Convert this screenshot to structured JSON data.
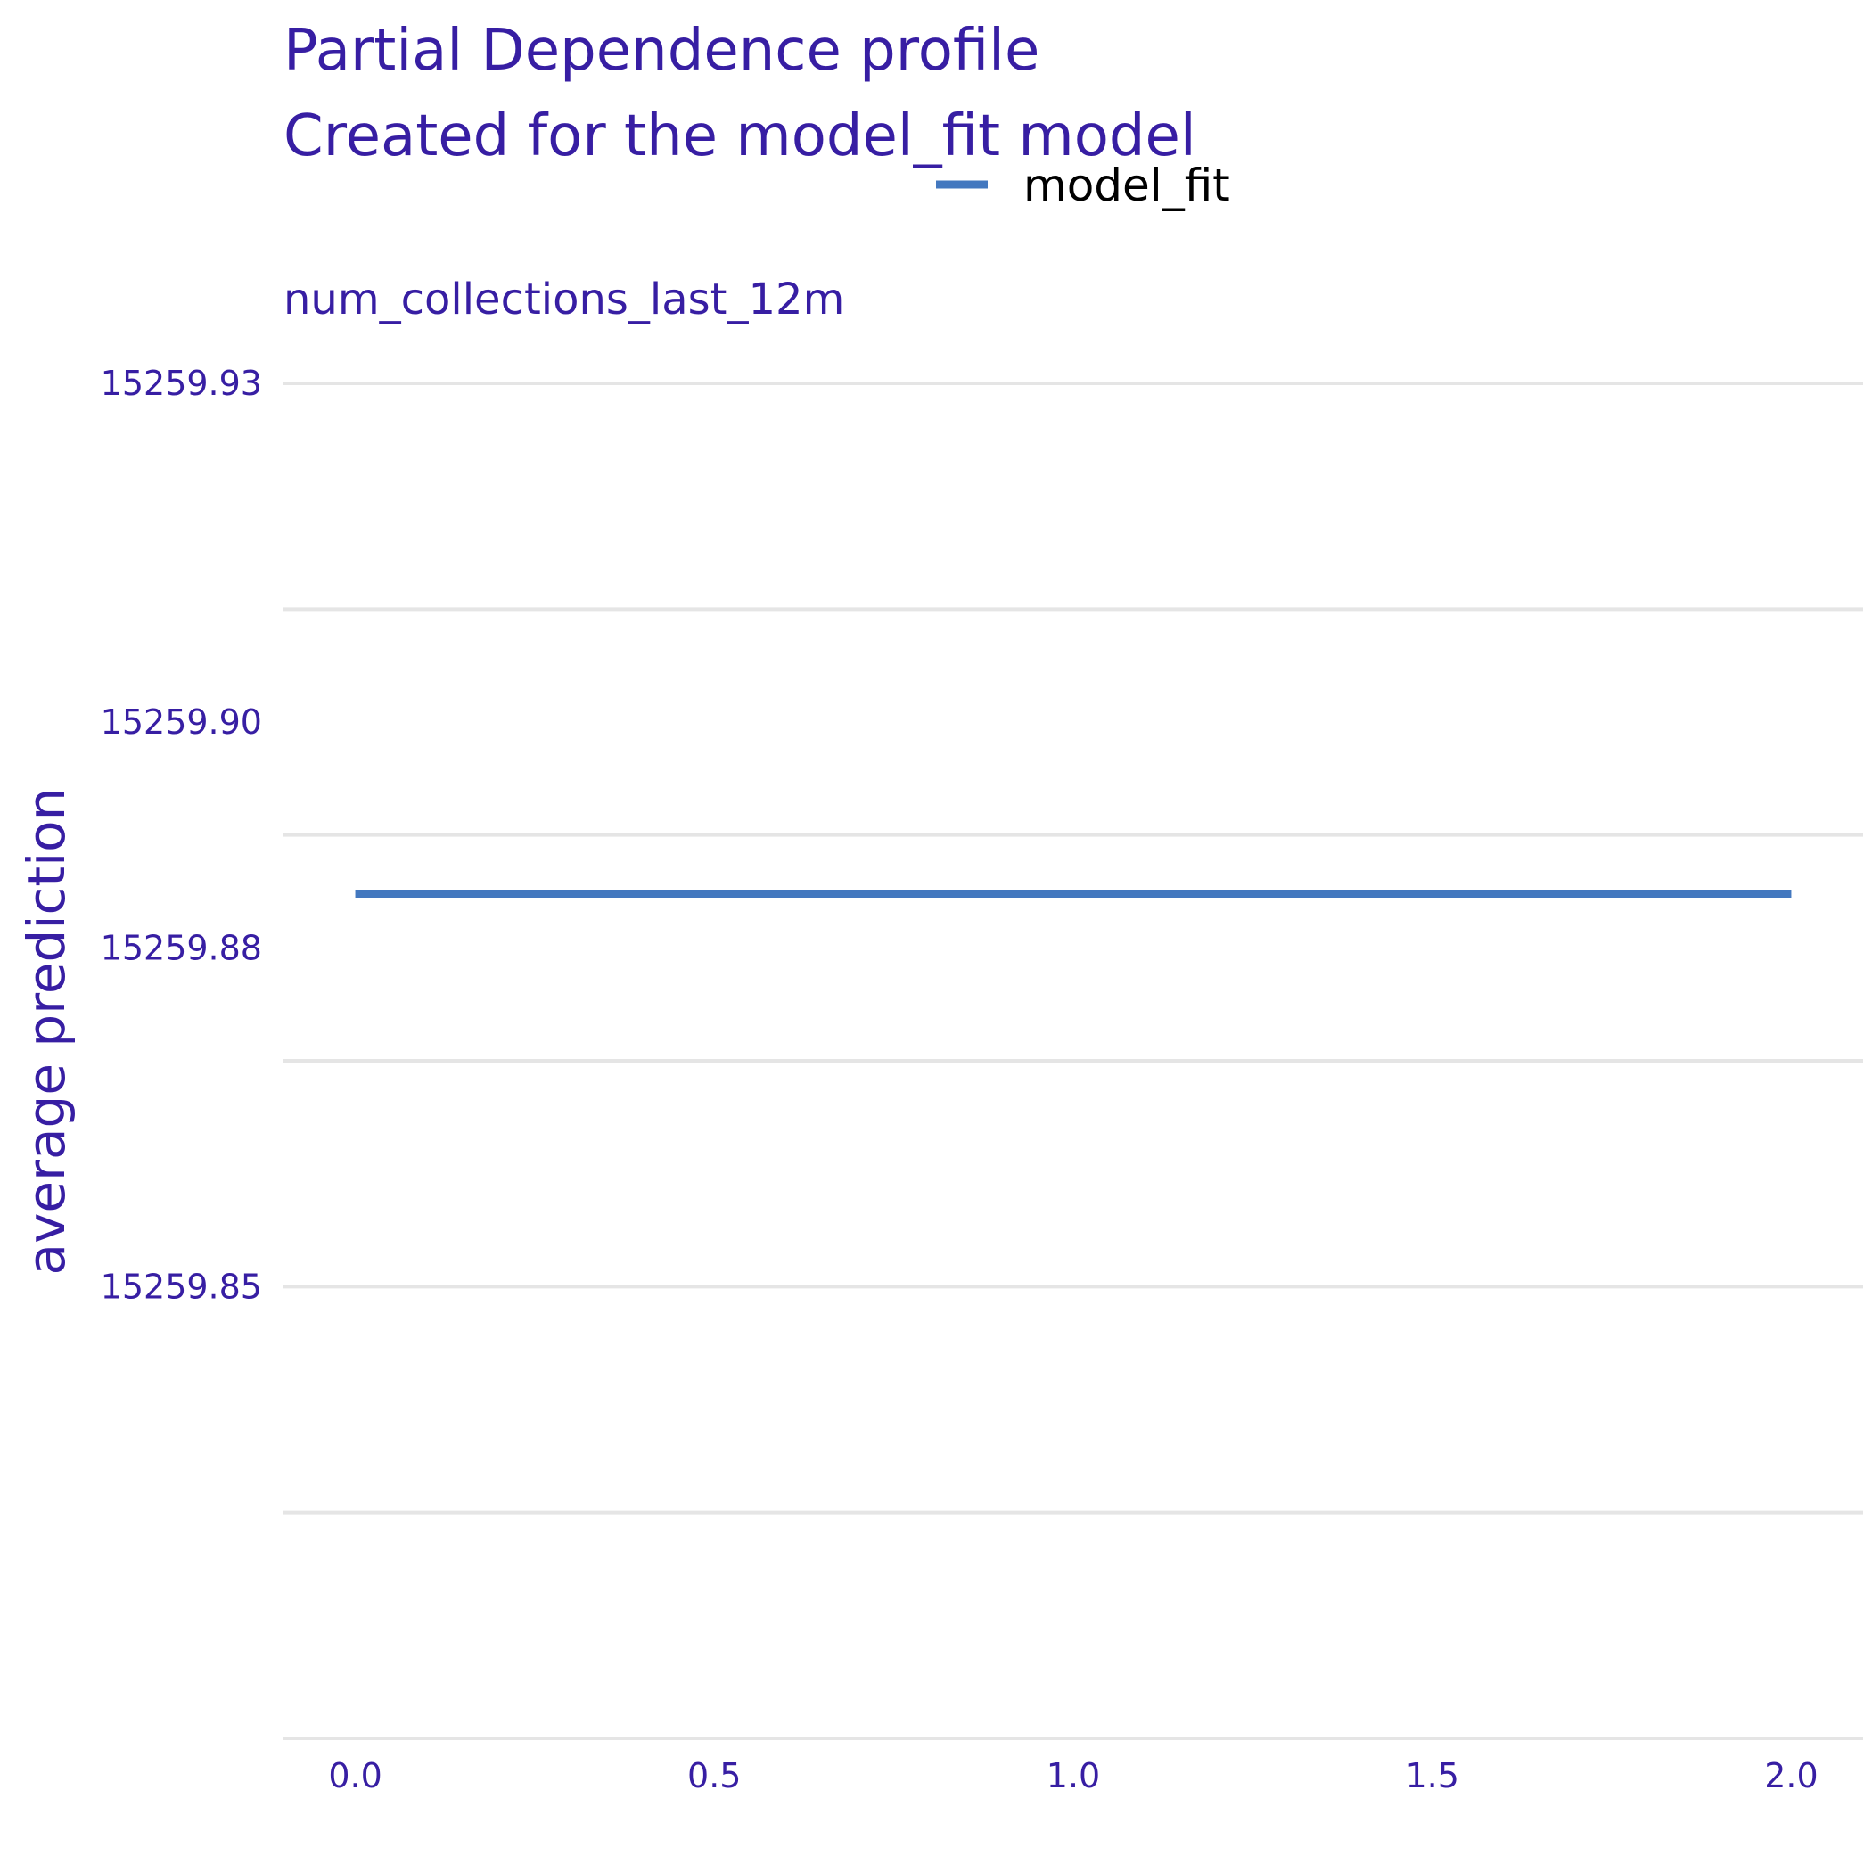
{
  "chart_data": {
    "type": "line",
    "title": "Partial Dependence profile",
    "subtitle": "Created for the model_fit model",
    "facet_label": "num_collections_last_12m",
    "xlabel": "",
    "ylabel": "average prediction",
    "xlim": [
      -0.1,
      2.1
    ],
    "ylim": [
      15259.81,
      15259.93
    ],
    "x_ticks": [
      "0.0",
      "0.5",
      "1.0",
      "1.5",
      "2.0"
    ],
    "y_ticks": [
      "15259.85",
      "15259.88",
      "15259.90",
      "15259.93"
    ],
    "legend": {
      "position": "top",
      "entries": [
        "model_fit"
      ]
    },
    "grid": true,
    "series": [
      {
        "name": "model_fit",
        "color": "#4378bf",
        "x": [
          0.0,
          2.0
        ],
        "y": [
          15259.8848,
          15259.8848
        ]
      }
    ]
  }
}
